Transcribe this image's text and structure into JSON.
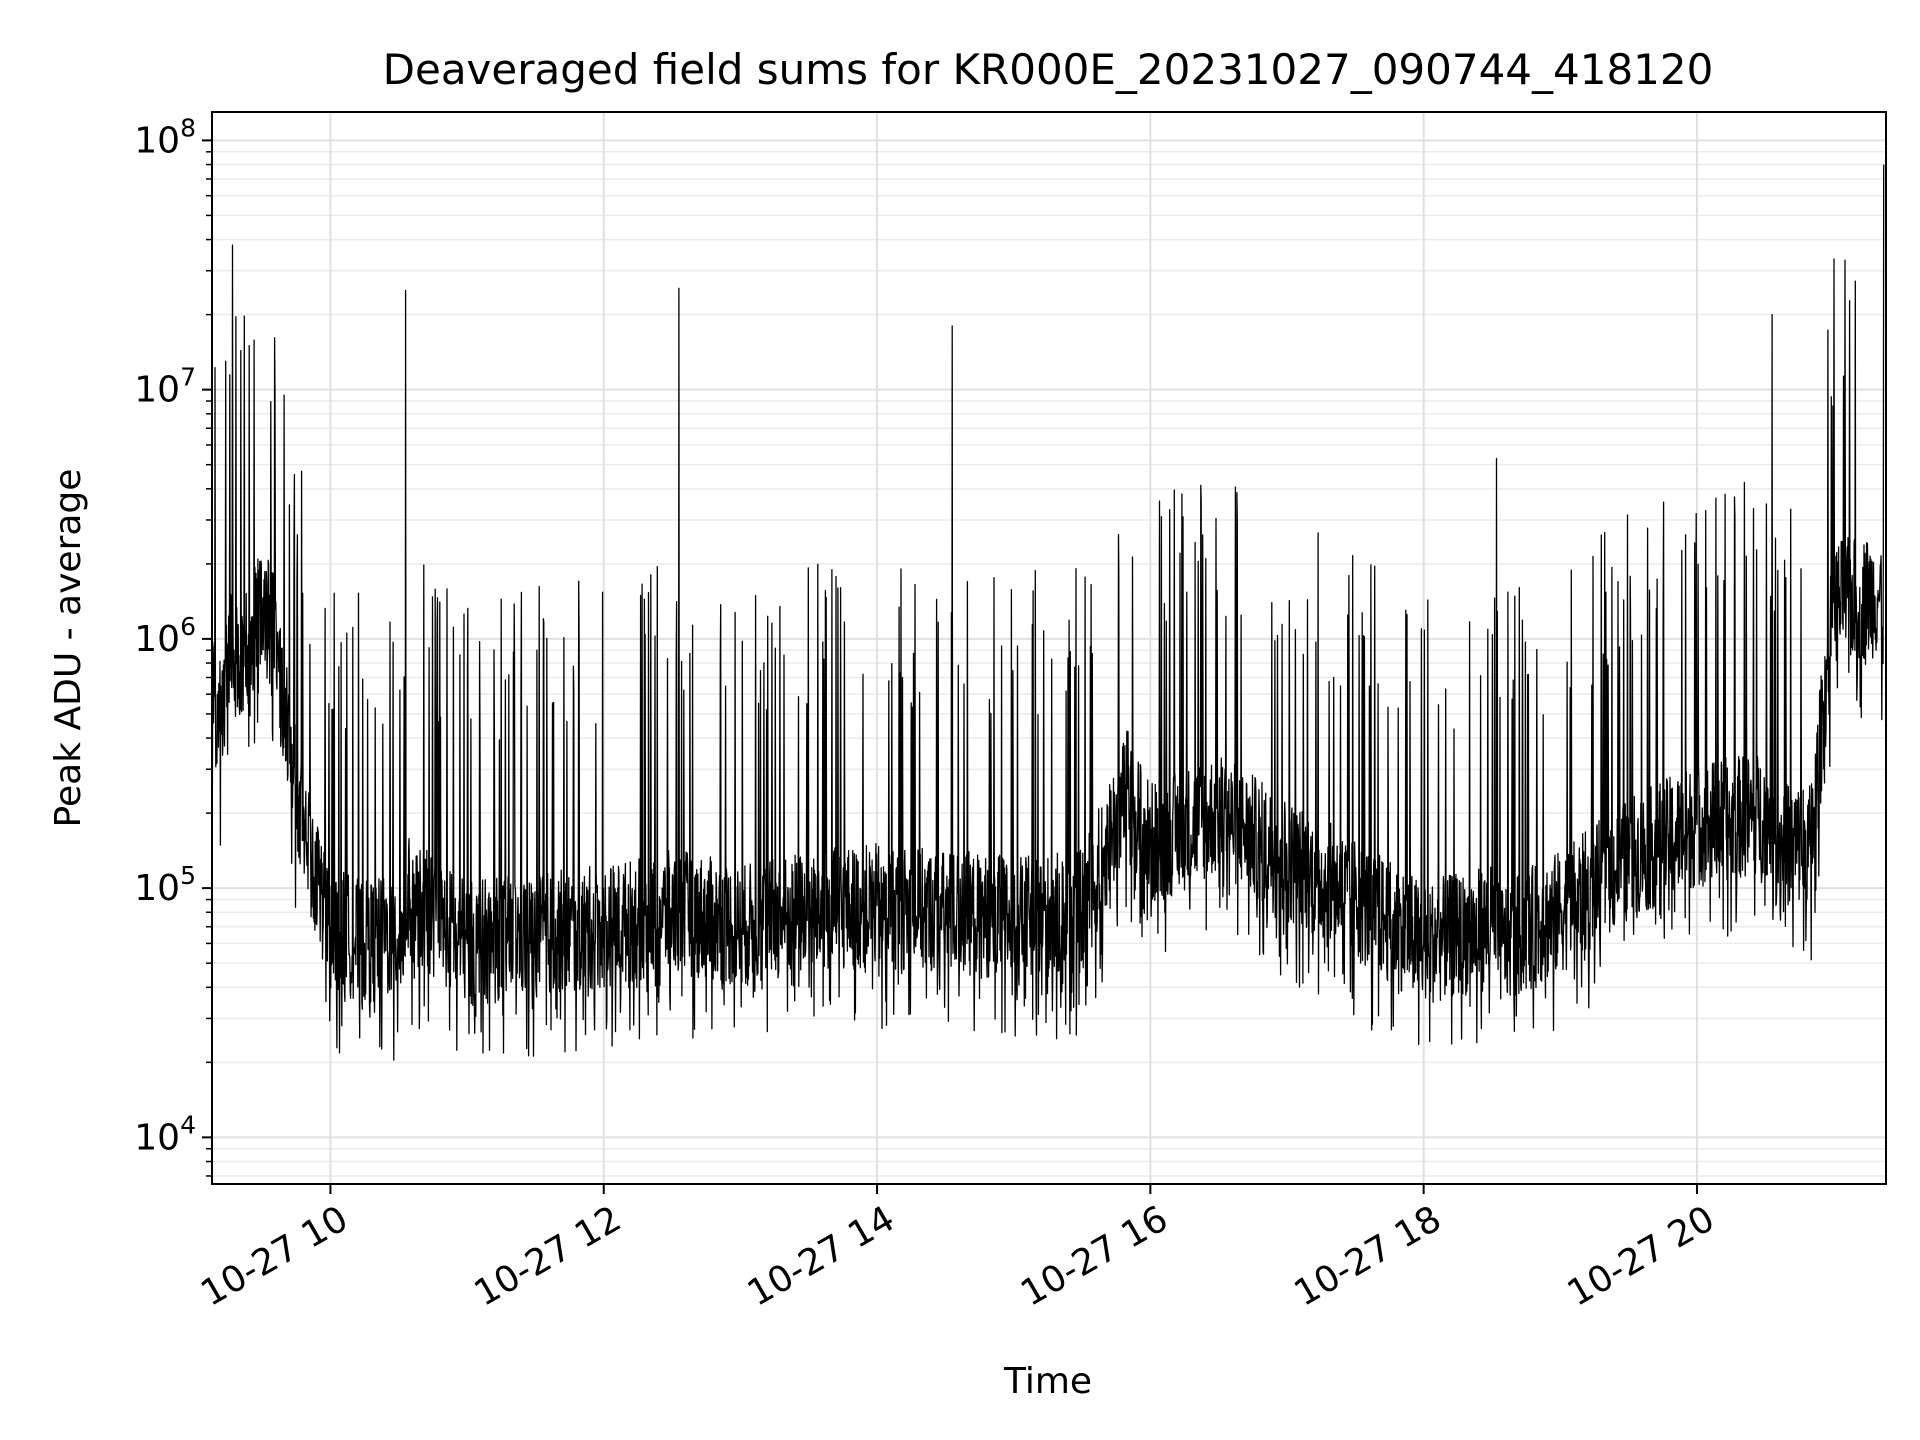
{
  "chart_data": {
    "type": "line",
    "title": "Deaveraged field sums for KR000E_20231027_090744_418120",
    "xlabel": "Time",
    "ylabel": "Peak ADU - average",
    "yscale": "log",
    "grid": true,
    "xlim": [
      "2023-10-27 09:08",
      "2023-10-27 21:23"
    ],
    "ylim": [
      6500,
      130000000
    ],
    "x_ticks": [
      {
        "value": "2023-10-27 10:00",
        "label": "10-27 10"
      },
      {
        "value": "2023-10-27 12:00",
        "label": "10-27 12"
      },
      {
        "value": "2023-10-27 14:00",
        "label": "10-27 14"
      },
      {
        "value": "2023-10-27 16:00",
        "label": "10-27 16"
      },
      {
        "value": "2023-10-27 18:00",
        "label": "10-27 18"
      },
      {
        "value": "2023-10-27 20:00",
        "label": "10-27 20"
      }
    ],
    "y_ticks": [
      {
        "value": 10000,
        "base": "10",
        "exp": "4"
      },
      {
        "value": 100000,
        "base": "10",
        "exp": "5"
      },
      {
        "value": 1000000,
        "base": "10",
        "exp": "6"
      },
      {
        "value": 10000000,
        "base": "10",
        "exp": "7"
      },
      {
        "value": 100000000,
        "base": "10",
        "exp": "8"
      }
    ],
    "series": [
      {
        "color": "#000000",
        "points": [
          [
            "2023-10-27 09:08",
            600000
          ],
          [
            "2023-10-27 09:12",
            450000
          ],
          [
            "2023-10-27 09:15",
            900000
          ],
          [
            "2023-10-27 09:17",
            38000000
          ],
          [
            "2023-10-27 09:18",
            800000
          ],
          [
            "2023-10-27 09:25",
            1000000
          ],
          [
            "2023-10-27 09:30",
            1300000
          ],
          [
            "2023-10-27 09:35",
            1100000
          ],
          [
            "2023-10-27 09:40",
            500000
          ],
          [
            "2023-10-27 09:45",
            250000
          ],
          [
            "2023-10-27 09:50",
            150000
          ],
          [
            "2023-10-27 10:00",
            70000
          ],
          [
            "2023-10-27 10:15",
            60000
          ],
          [
            "2023-10-27 10:30",
            65000
          ],
          [
            "2023-10-27 10:33",
            25000000
          ],
          [
            "2023-10-27 10:35",
            90000
          ],
          [
            "2023-10-27 11:00",
            60000
          ],
          [
            "2023-10-27 11:30",
            65000
          ],
          [
            "2023-10-27 12:00",
            70000
          ],
          [
            "2023-10-27 12:30",
            80000
          ],
          [
            "2023-10-27 12:33",
            25500000
          ],
          [
            "2023-10-27 12:35",
            80000
          ],
          [
            "2023-10-27 13:00",
            70000
          ],
          [
            "2023-10-27 13:30",
            80000
          ],
          [
            "2023-10-27 14:00",
            85000
          ],
          [
            "2023-10-27 14:30",
            80000
          ],
          [
            "2023-10-27 14:33",
            18000000
          ],
          [
            "2023-10-27 14:35",
            80000
          ],
          [
            "2023-10-27 15:00",
            75000
          ],
          [
            "2023-10-27 15:30",
            80000
          ],
          [
            "2023-10-27 15:50",
            250000
          ],
          [
            "2023-10-27 16:00",
            150000
          ],
          [
            "2023-10-27 16:30",
            200000
          ],
          [
            "2023-10-27 17:00",
            130000
          ],
          [
            "2023-10-27 17:30",
            90000
          ],
          [
            "2023-10-27 18:00",
            60000
          ],
          [
            "2023-10-27 18:30",
            70000
          ],
          [
            "2023-10-27 18:32",
            5300000
          ],
          [
            "2023-10-27 18:35",
            60000
          ],
          [
            "2023-10-27 19:00",
            80000
          ],
          [
            "2023-10-27 19:30",
            130000
          ],
          [
            "2023-10-27 20:00",
            180000
          ],
          [
            "2023-10-27 20:30",
            200000
          ],
          [
            "2023-10-27 20:33",
            20000000
          ],
          [
            "2023-10-27 20:36",
            150000
          ],
          [
            "2023-10-27 20:50",
            150000
          ],
          [
            "2023-10-27 21:00",
            1400000
          ],
          [
            "2023-10-27 21:20",
            1500000
          ],
          [
            "2023-10-27 21:22",
            80000000
          ]
        ]
      }
    ]
  }
}
